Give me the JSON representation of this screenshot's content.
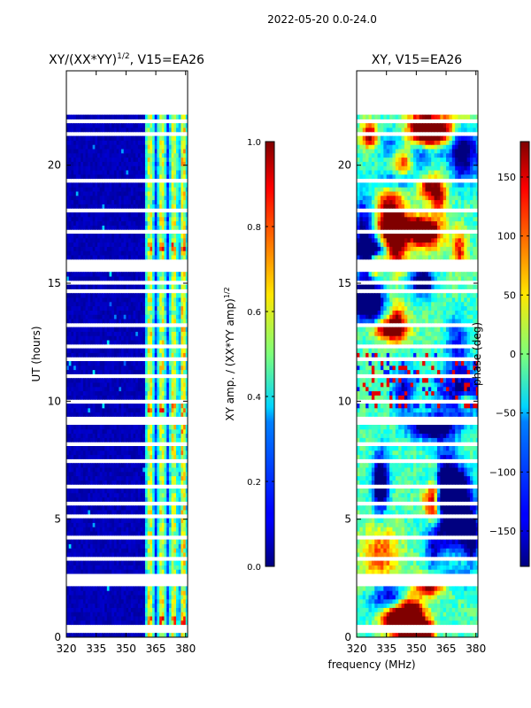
{
  "suptitle": "2022-05-20 0.0-24.0",
  "shared_xlabel": "frequency (MHz)",
  "colors": {
    "background": "#ffffff",
    "axis": "#000000",
    "jet_low": "#00007f",
    "jet_high": "#7f0000",
    "gap": "#ffffff"
  },
  "chart_data": [
    {
      "type": "heatmap",
      "title_main": "XY/(XX*YY)",
      "title_sup": "1/2",
      "title_rest": ", V15=EA26",
      "xlabel": "",
      "ylabel": "UT (hours)",
      "xlim": [
        320,
        381
      ],
      "ylim": [
        0,
        24
      ],
      "xticks": [
        320,
        335,
        350,
        365,
        380
      ],
      "yticks": [
        0,
        5,
        10,
        15,
        20
      ],
      "data_extent_hours": [
        0,
        22.3
      ],
      "colorbar": {
        "label": "XY amp. / (XX*YY amp)",
        "label_sup": "1/2",
        "range": [
          0.0,
          1.0
        ],
        "ticks": [
          "0.0",
          "0.2",
          "0.4",
          "0.6",
          "0.8",
          "1.0"
        ],
        "tick_values": [
          0.0,
          0.2,
          0.4,
          0.6,
          0.8,
          1.0
        ]
      },
      "description": "mostly near-zero amplitude below 359 MHz; bright vertical channel stripes between 359 and 380 MHz"
    },
    {
      "type": "heatmap",
      "title_main": "XY, V15=EA26",
      "title_sup": "",
      "title_rest": "",
      "xlabel": "frequency (MHz)",
      "ylabel": "",
      "xlim": [
        320,
        381
      ],
      "ylim": [
        0,
        24
      ],
      "xticks": [
        320,
        335,
        350,
        365,
        380
      ],
      "yticks": [
        0,
        5,
        10,
        15,
        20
      ],
      "data_extent_hours": [
        0,
        22.3
      ],
      "colorbar": {
        "label": "phase (deg)",
        "label_sup": "",
        "range": [
          -180,
          180
        ],
        "ticks": [
          "−150",
          "−100",
          "−50",
          "0",
          "50",
          "100",
          "150"
        ],
        "tick_values": [
          -150,
          -100,
          -50,
          0,
          50,
          100,
          150
        ]
      },
      "description": "noisy phase, mostly cyan to green with red and blue patches"
    }
  ]
}
